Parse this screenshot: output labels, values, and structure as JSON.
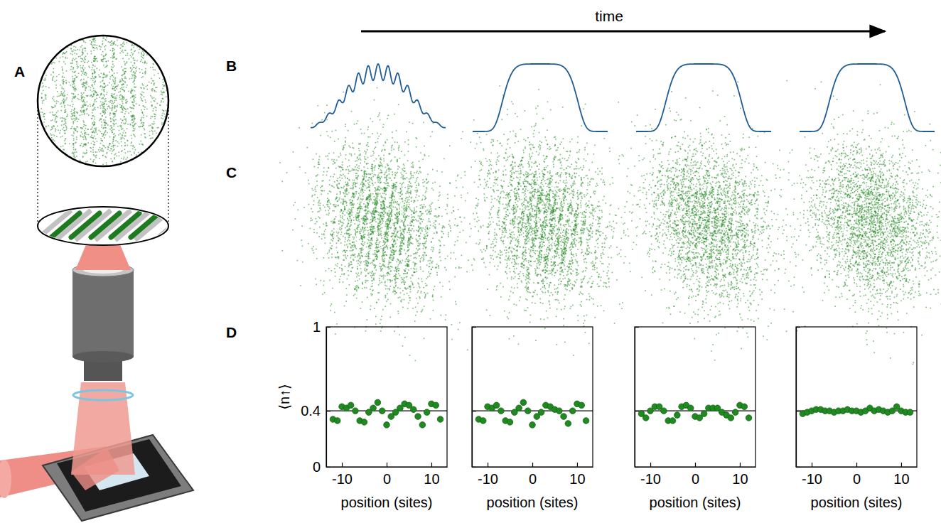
{
  "figure": {
    "time_label": "time",
    "panel_labels": [
      "A",
      "B",
      "C",
      "D"
    ]
  },
  "chart_data": [
    {
      "type": "scatter",
      "x_label": "position (sites)",
      "y_label": "⟨n↑⟩",
      "color": "#1f8a1f",
      "marker": "circle",
      "x": [
        -12,
        -11,
        -10,
        -9,
        -8,
        -7,
        -6,
        -5,
        -4,
        -3,
        -2,
        -1,
        0,
        1,
        2,
        3,
        4,
        5,
        6,
        7,
        8,
        9,
        10,
        11,
        12
      ],
      "values": [
        0.34,
        0.33,
        0.43,
        0.42,
        0.44,
        0.4,
        0.33,
        0.32,
        0.39,
        0.42,
        0.46,
        0.4,
        0.3,
        0.36,
        0.39,
        0.42,
        0.45,
        0.44,
        0.41,
        0.36,
        0.3,
        0.39,
        0.45,
        0.44,
        0.34
      ],
      "xlim": [
        -13.5,
        13.5
      ],
      "xticks": [
        -10,
        0,
        10
      ],
      "ylim": [
        0,
        1
      ],
      "yticks": [
        0,
        0.4,
        1
      ],
      "hline": 0.4
    },
    {
      "type": "scatter",
      "x_label": "position (sites)",
      "color": "#1f8a1f",
      "marker": "circle",
      "tick_labels": "x",
      "x": [
        -12,
        -11,
        -10,
        -9,
        -8,
        -7,
        -6,
        -5,
        -4,
        -3,
        -2,
        -1,
        0,
        1,
        2,
        3,
        4,
        5,
        6,
        7,
        8,
        9,
        10,
        11,
        12
      ],
      "values": [
        0.34,
        0.33,
        0.43,
        0.42,
        0.44,
        0.4,
        0.33,
        0.32,
        0.39,
        0.42,
        0.46,
        0.4,
        0.3,
        0.36,
        0.39,
        0.44,
        0.43,
        0.41,
        0.4,
        0.36,
        0.31,
        0.4,
        0.45,
        0.44,
        0.33
      ],
      "xlim": [
        -13.5,
        13.5
      ],
      "xticks": [
        -10,
        0,
        10
      ],
      "ylim": [
        0,
        1
      ],
      "yticks": [
        0,
        0.4,
        1
      ],
      "hline": 0.4
    },
    {
      "type": "scatter",
      "x_label": "position (sites)",
      "color": "#1f8a1f",
      "marker": "circle",
      "tick_labels": "x",
      "x": [
        -12,
        -11,
        -10,
        -9,
        -8,
        -7,
        -6,
        -5,
        -4,
        -3,
        -2,
        -1,
        0,
        1,
        2,
        3,
        4,
        5,
        6,
        7,
        8,
        9,
        10,
        11,
        12
      ],
      "values": [
        0.38,
        0.35,
        0.4,
        0.43,
        0.43,
        0.4,
        0.33,
        0.33,
        0.37,
        0.43,
        0.44,
        0.42,
        0.36,
        0.35,
        0.38,
        0.42,
        0.42,
        0.42,
        0.39,
        0.37,
        0.35,
        0.39,
        0.44,
        0.43,
        0.35
      ],
      "xlim": [
        -13.5,
        13.5
      ],
      "xticks": [
        -10,
        0,
        10
      ],
      "ylim": [
        0,
        1
      ],
      "yticks": [
        0,
        0.4,
        1
      ],
      "hline": 0.4
    },
    {
      "type": "scatter",
      "x_label": "position (sites)",
      "color": "#1f8a1f",
      "marker": "circle",
      "tick_labels": "x",
      "x": [
        -12,
        -11,
        -10,
        -9,
        -8,
        -7,
        -6,
        -5,
        -4,
        -3,
        -2,
        -1,
        0,
        1,
        2,
        3,
        4,
        5,
        6,
        7,
        8,
        9,
        10,
        11,
        12
      ],
      "values": [
        0.38,
        0.39,
        0.4,
        0.41,
        0.41,
        0.4,
        0.4,
        0.39,
        0.4,
        0.4,
        0.41,
        0.4,
        0.4,
        0.39,
        0.4,
        0.42,
        0.4,
        0.41,
        0.4,
        0.39,
        0.4,
        0.43,
        0.4,
        0.39,
        0.39
      ],
      "xlim": [
        -13.5,
        13.5
      ],
      "xticks": [
        -10,
        0,
        10
      ],
      "ylim": [
        0,
        1
      ],
      "yticks": [
        0,
        0.4,
        1
      ],
      "hline": 0.4
    }
  ]
}
